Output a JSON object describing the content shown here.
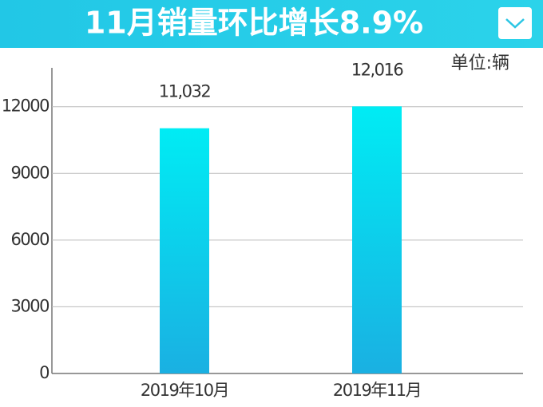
{
  "chart_data": {
    "type": "bar",
    "title": "11月销量环比增长8.9%",
    "unit": "单位:辆",
    "categories": [
      "2019年10月",
      "2019年11月"
    ],
    "values": [
      11032,
      12016
    ],
    "value_labels": [
      "11,032",
      "12,016"
    ],
    "color": "#00e4f2",
    "ylim": [
      0,
      13750
    ],
    "yticks": [
      0,
      3000,
      6000,
      9000,
      12000
    ],
    "grid": true
  }
}
